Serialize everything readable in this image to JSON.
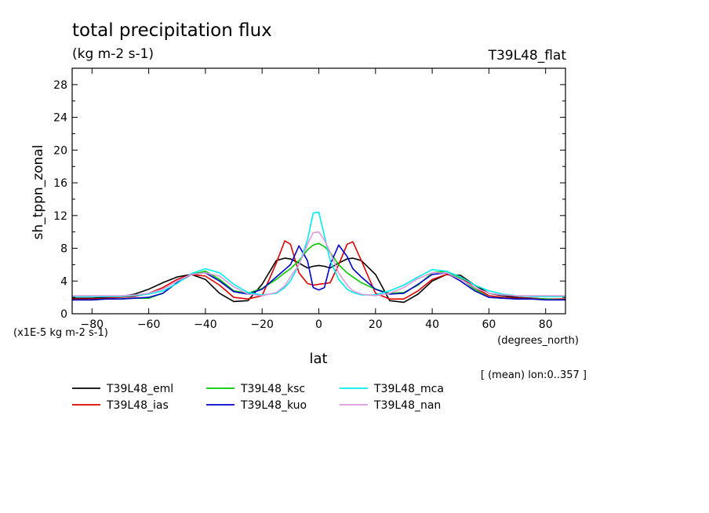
{
  "chart_data": {
    "type": "line",
    "title": "total precipitation flux",
    "units": "(kg m-2 s-1)",
    "run_label": "T39L48_flat",
    "ylabel": "sh_tppn_zonal",
    "xlabel": "lat",
    "xunits": "(degrees_north)",
    "yscale_note": "(x1E-5 kg m-2 s-1)",
    "mean_note": "[ (mean) lon:0..357 ]",
    "xlim": [
      -87,
      87
    ],
    "ylim": [
      0,
      30
    ],
    "xticks": [
      -80,
      -60,
      -40,
      -20,
      0,
      20,
      40,
      60,
      80
    ],
    "yticks": [
      0,
      4,
      8,
      12,
      16,
      20,
      24,
      28
    ],
    "grid": false,
    "legend_position": "bottom",
    "x": [
      -87,
      -80,
      -75,
      -70,
      -65,
      -60,
      -55,
      -50,
      -45,
      -40,
      -35,
      -30,
      -25,
      -20,
      -15,
      -12,
      -10,
      -7,
      -4,
      -2,
      0,
      2,
      4,
      7,
      10,
      12,
      15,
      20,
      25,
      30,
      35,
      40,
      45,
      50,
      55,
      60,
      65,
      70,
      75,
      80,
      87
    ],
    "series": [
      {
        "name": "T39L48_eml",
        "color": "#000000",
        "values": [
          1.9,
          1.9,
          2.0,
          2.1,
          2.4,
          3.0,
          3.8,
          4.5,
          4.8,
          4.2,
          2.5,
          1.5,
          1.6,
          3.6,
          6.5,
          6.8,
          6.7,
          6.2,
          5.6,
          5.8,
          5.9,
          5.8,
          5.6,
          6.2,
          6.7,
          6.8,
          6.5,
          4.8,
          1.6,
          1.4,
          2.4,
          4.0,
          4.8,
          4.7,
          3.5,
          2.5,
          2.2,
          2.0,
          1.9,
          1.8,
          1.7
        ]
      },
      {
        "name": "T39L48_ias",
        "color": "#dd0000",
        "values": [
          1.8,
          1.8,
          1.9,
          2.0,
          2.1,
          2.5,
          3.2,
          4.2,
          4.8,
          4.6,
          3.5,
          2.0,
          1.8,
          2.2,
          6.2,
          8.9,
          8.5,
          5.0,
          3.7,
          3.5,
          3.6,
          3.7,
          3.8,
          6.0,
          8.5,
          8.8,
          6.5,
          2.5,
          1.8,
          1.8,
          2.8,
          4.2,
          4.8,
          4.5,
          3.2,
          2.2,
          2.0,
          1.9,
          1.9,
          1.8,
          1.8
        ]
      },
      {
        "name": "T39L48_ksc",
        "color": "#00cc00",
        "values": [
          1.7,
          1.7,
          1.8,
          1.8,
          1.9,
          1.9,
          2.5,
          3.8,
          4.8,
          5.2,
          4.2,
          2.8,
          2.5,
          3.1,
          4.2,
          5.0,
          5.5,
          6.5,
          7.8,
          8.4,
          8.6,
          8.2,
          7.5,
          6.0,
          5.0,
          4.5,
          3.8,
          3.0,
          2.5,
          2.6,
          3.5,
          5.0,
          5.2,
          4.3,
          3.0,
          2.0,
          1.9,
          1.8,
          1.8,
          1.8,
          1.7
        ]
      },
      {
        "name": "T39L48_kuo",
        "color": "#0000cc",
        "values": [
          1.7,
          1.7,
          1.8,
          1.8,
          1.9,
          2.0,
          2.5,
          3.8,
          4.8,
          5.0,
          4.0,
          2.7,
          2.4,
          3.0,
          4.5,
          5.4,
          6.0,
          8.3,
          6.5,
          3.2,
          2.9,
          3.2,
          6.0,
          8.4,
          7.0,
          5.5,
          4.5,
          3.0,
          2.4,
          2.5,
          3.6,
          4.8,
          5.0,
          4.0,
          2.8,
          2.0,
          1.9,
          1.8,
          1.8,
          1.7,
          1.7
        ]
      },
      {
        "name": "T39L48_mca",
        "color": "#00eeee",
        "values": [
          2.1,
          2.1,
          2.1,
          2.1,
          2.2,
          2.4,
          2.8,
          3.7,
          4.9,
          5.5,
          5.0,
          3.6,
          2.6,
          2.3,
          2.5,
          3.2,
          4.0,
          6.0,
          9.0,
          12.3,
          12.4,
          9.5,
          6.5,
          4.2,
          3.0,
          2.6,
          2.3,
          2.3,
          2.8,
          3.5,
          4.5,
          5.4,
          5.2,
          4.5,
          3.5,
          2.8,
          2.4,
          2.2,
          2.1,
          2.1,
          2.1
        ]
      },
      {
        "name": "T39L48_nan",
        "color": "#dd99dd",
        "values": [
          2.2,
          2.2,
          2.2,
          2.2,
          2.3,
          2.5,
          3.0,
          4.0,
          4.8,
          5.0,
          4.6,
          3.3,
          2.4,
          2.2,
          2.6,
          3.4,
          4.5,
          6.0,
          8.5,
          9.9,
          10.0,
          9.0,
          7.5,
          5.0,
          3.5,
          2.8,
          2.4,
          2.2,
          2.5,
          3.2,
          4.3,
          5.0,
          5.0,
          4.2,
          3.2,
          2.5,
          2.3,
          2.2,
          2.2,
          2.2,
          2.2
        ]
      }
    ]
  }
}
